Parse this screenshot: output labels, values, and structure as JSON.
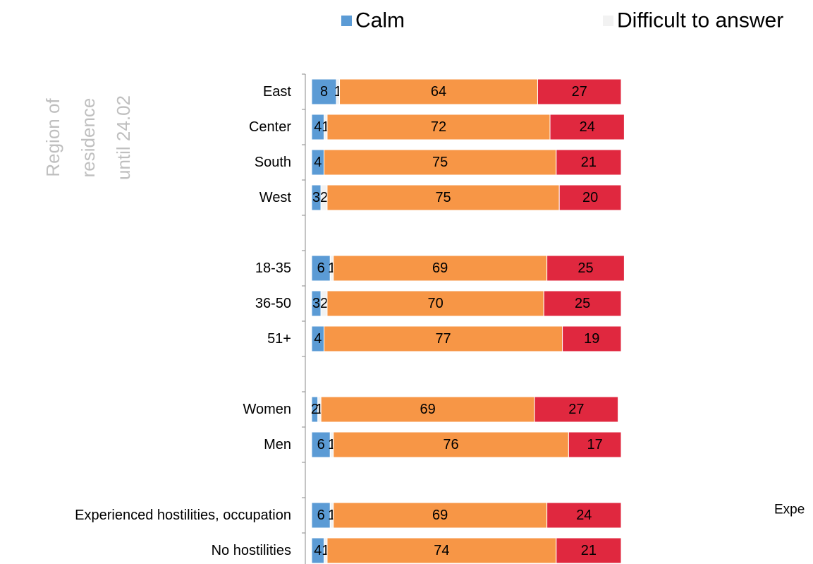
{
  "chart_data": {
    "type": "stacked_barh",
    "categories": [
      "East",
      "Center",
      "South",
      "West",
      null,
      "18-35",
      "36-50",
      "51+",
      null,
      "Women",
      "Men",
      null,
      "Experienced hostilities, occupation",
      "No hostilities"
    ],
    "series": [
      {
        "name": "Calm",
        "color": "#5b9bd5",
        "values": [
          8,
          4,
          4,
          3,
          null,
          6,
          3,
          4,
          null,
          2,
          6,
          null,
          6,
          4
        ]
      },
      {
        "name": "Difficult to answer",
        "color": "#f2f2f2",
        "values": [
          1,
          1,
          null,
          2,
          null,
          1,
          2,
          null,
          null,
          1,
          1,
          null,
          1,
          1
        ]
      },
      {
        "color": "#f79646",
        "values": [
          64,
          72,
          75,
          75,
          null,
          69,
          70,
          77,
          null,
          69,
          76,
          null,
          69,
          74
        ]
      },
      {
        "color": "#e0283f",
        "values": [
          27,
          24,
          21,
          20,
          null,
          25,
          25,
          19,
          null,
          27,
          17,
          null,
          24,
          21
        ]
      }
    ],
    "xlim": [
      0,
      100
    ],
    "side_label": [
      "Region of",
      "residence",
      "until 24.02"
    ],
    "annotation": "Expe"
  }
}
